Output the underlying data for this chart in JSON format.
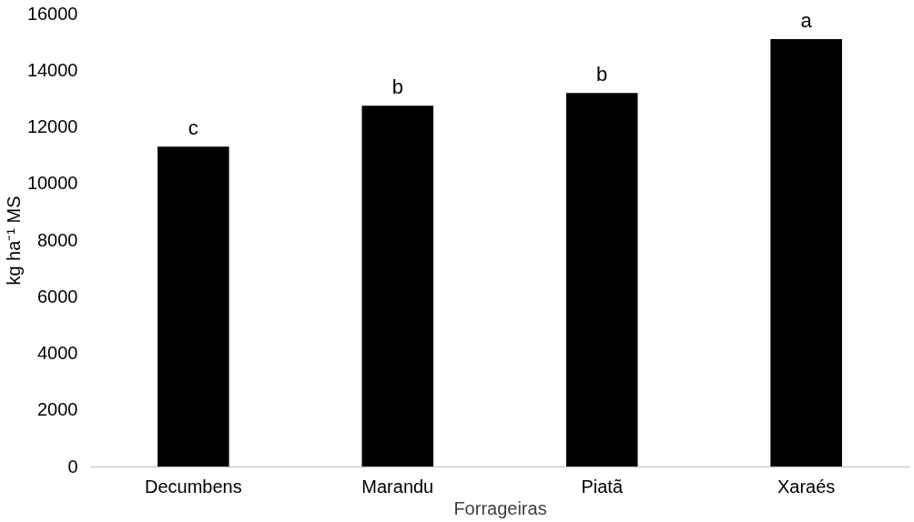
{
  "chart_data": {
    "type": "bar",
    "xlabel": "Forrageiras",
    "ylabel": "kg ha⁻¹ MS",
    "categories": [
      "Decumbens",
      "Marandu",
      "Piatã",
      "Xaraés"
    ],
    "values": [
      11300,
      12750,
      13200,
      15100
    ],
    "color": "#000000",
    "ylim": [
      0,
      16000
    ],
    "yticks": [
      0,
      2000,
      4000,
      6000,
      8000,
      10000,
      12000,
      14000,
      16000
    ],
    "grid": false,
    "annotations": [
      {
        "text": "c",
        "x": "Decumbens",
        "y": 11300
      },
      {
        "text": "b",
        "x": "Marandu",
        "y": 12750
      },
      {
        "text": "b",
        "x": "Piatã",
        "y": 13200
      },
      {
        "text": "a",
        "x": "Xaraés",
        "y": 15100
      }
    ]
  }
}
